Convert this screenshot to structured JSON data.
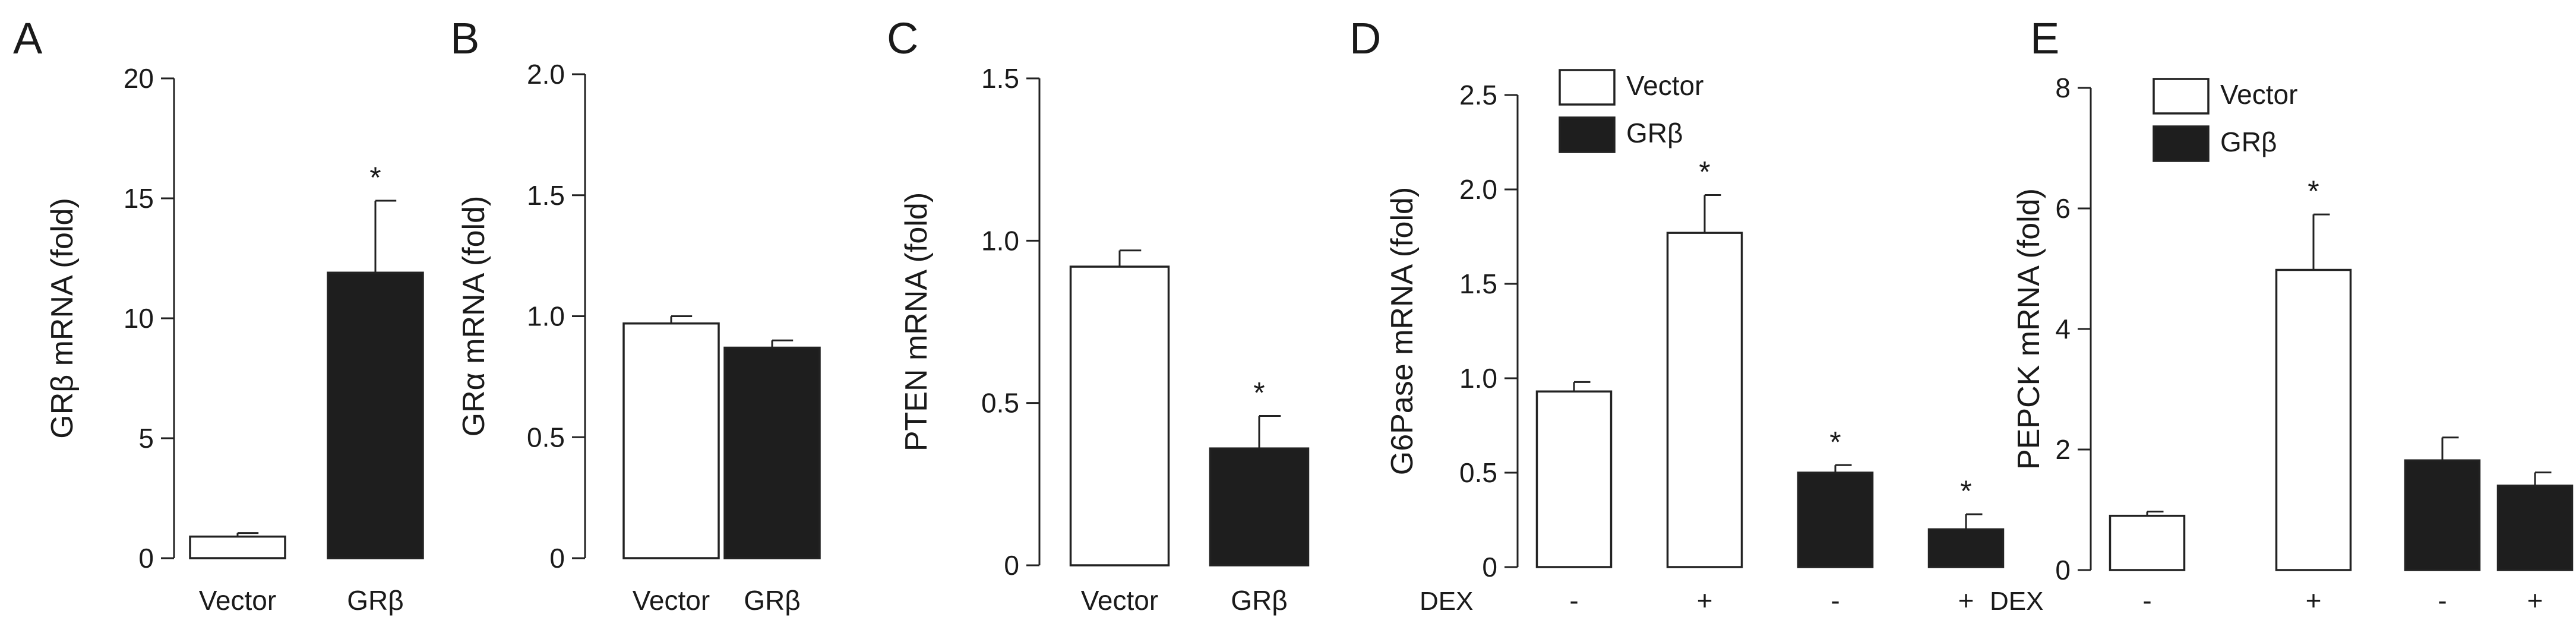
{
  "colors": {
    "open": "#ffffff",
    "filled": "#1e1e1e",
    "stroke": "#222222"
  },
  "chart_data": [
    {
      "panel": "A",
      "type": "bar",
      "ylabel": "GRβ mRNA (fold)",
      "ylim": [
        0,
        20
      ],
      "yticks": [
        "0",
        "5",
        "10",
        "15",
        "20"
      ],
      "categories": [
        "Vector",
        "GRβ"
      ],
      "values": [
        0.9,
        11.9
      ],
      "errors": [
        0.15,
        3.0
      ],
      "fills": [
        "open",
        "filled"
      ],
      "significant": [
        "",
        "*"
      ],
      "grid": false
    },
    {
      "panel": "B",
      "type": "bar",
      "ylabel": "GRα mRNA (fold)",
      "ylim": [
        0,
        2.0
      ],
      "yticks": [
        "0",
        "0.5",
        "1.0",
        "1.5",
        "2.0"
      ],
      "categories": [
        "Vector",
        "GRβ"
      ],
      "values": [
        0.97,
        0.87
      ],
      "errors": [
        0.03,
        0.03
      ],
      "fills": [
        "open",
        "filled"
      ],
      "significant": [
        "",
        ""
      ],
      "grid": false
    },
    {
      "panel": "C",
      "type": "bar",
      "ylabel": "PTEN mRNA (fold)",
      "ylim": [
        0,
        1.5
      ],
      "yticks": [
        "0",
        "0.5",
        "1.0",
        "1.5"
      ],
      "categories": [
        "Vector",
        "GRβ"
      ],
      "values": [
        0.92,
        0.36
      ],
      "errors": [
        0.05,
        0.1
      ],
      "fills": [
        "open",
        "filled"
      ],
      "significant": [
        "",
        "*"
      ],
      "grid": false
    },
    {
      "panel": "D",
      "type": "bar",
      "ylabel": "G6Pase mRNA (fold)",
      "ylim": [
        0,
        2.5
      ],
      "yticks": [
        "0",
        "0.5",
        "1.0",
        "1.5",
        "2.0",
        "2.5"
      ],
      "categories": [
        "-",
        "+",
        "-",
        "+"
      ],
      "xlabel": "DEX",
      "values": [
        0.93,
        1.77,
        0.5,
        0.2
      ],
      "errors": [
        0.05,
        0.2,
        0.04,
        0.08
      ],
      "fills": [
        "open",
        "open",
        "filled",
        "filled"
      ],
      "significant": [
        "",
        "*",
        "*",
        "*"
      ],
      "legend": [
        {
          "label": "Vector",
          "fill": "open"
        },
        {
          "label": "GRβ",
          "fill": "filled"
        }
      ],
      "legend_position": "top-left",
      "grid": false
    },
    {
      "panel": "E",
      "type": "bar",
      "ylabel": "PEPCK mRNA (fold)",
      "ylim": [
        0,
        8
      ],
      "yticks": [
        "0",
        "2",
        "4",
        "6",
        "8"
      ],
      "categories": [
        "-",
        "+",
        "-",
        "+"
      ],
      "xlabel": "DEX",
      "values": [
        0.9,
        4.98,
        1.82,
        1.4
      ],
      "errors": [
        0.07,
        0.92,
        0.38,
        0.22
      ],
      "fills": [
        "open",
        "open",
        "filled",
        "filled"
      ],
      "significant": [
        "",
        "*",
        "",
        ""
      ],
      "legend": [
        {
          "label": "Vector",
          "fill": "open"
        },
        {
          "label": "GRβ",
          "fill": "filled"
        }
      ],
      "legend_position": "top-left",
      "grid": false
    }
  ]
}
